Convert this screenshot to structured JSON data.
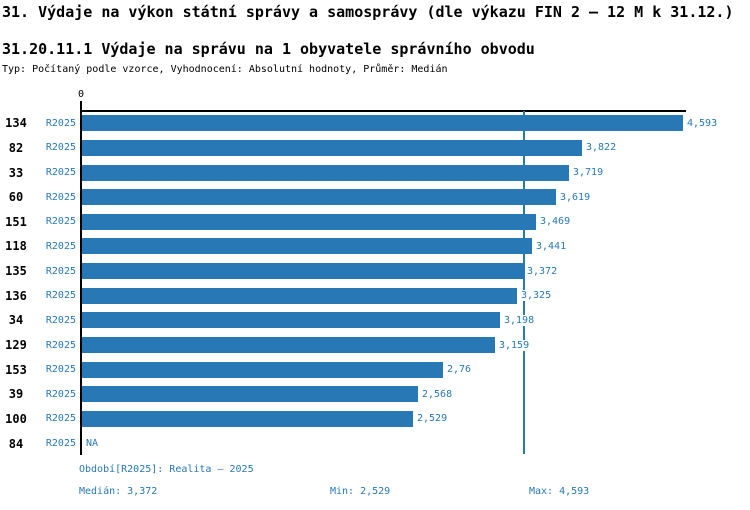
{
  "header": {
    "title": "31. Výdaje na výkon státní správy a samosprávy (dle výkazu FIN 2 – 12 M k 31.12.)",
    "subtitle": "31.20.11.1 Výdaje na správu na 1 obyvatele správního obvodu",
    "type_line": "Typ: Počítaný podle vzorce, Vyhodnocení: Absolutní hodnoty, Průměr: Medián"
  },
  "chart_data": {
    "type": "bar",
    "orientation": "horizontal",
    "x_axis": {
      "min": 0,
      "max": 4593,
      "tick_label": "0"
    },
    "colors": {
      "bar": "#2878b5",
      "accent_text": "#2878b5",
      "axis": "#000000"
    },
    "median_value": 3372,
    "min_value": 2529,
    "max_value": 4593,
    "rows": [
      {
        "id": "134",
        "period": "R2025",
        "value": 4593,
        "value_label": "4,593"
      },
      {
        "id": "82",
        "period": "R2025",
        "value": 3822,
        "value_label": "3,822"
      },
      {
        "id": "33",
        "period": "R2025",
        "value": 3719,
        "value_label": "3,719"
      },
      {
        "id": "60",
        "period": "R2025",
        "value": 3619,
        "value_label": "3,619"
      },
      {
        "id": "151",
        "period": "R2025",
        "value": 3469,
        "value_label": "3,469"
      },
      {
        "id": "118",
        "period": "R2025",
        "value": 3441,
        "value_label": "3,441"
      },
      {
        "id": "135",
        "period": "R2025",
        "value": 3372,
        "value_label": "3,372"
      },
      {
        "id": "136",
        "period": "R2025",
        "value": 3325,
        "value_label": "3,325"
      },
      {
        "id": "34",
        "period": "R2025",
        "value": 3198,
        "value_label": "3,198"
      },
      {
        "id": "129",
        "period": "R2025",
        "value": 3159,
        "value_label": "3,159"
      },
      {
        "id": "153",
        "period": "R2025",
        "value": 2760,
        "value_label": "2,76"
      },
      {
        "id": "39",
        "period": "R2025",
        "value": 2568,
        "value_label": "2,568"
      },
      {
        "id": "100",
        "period": "R2025",
        "value": 2529,
        "value_label": "2,529"
      },
      {
        "id": "84",
        "period": "R2025",
        "value": null,
        "value_label": "NA"
      }
    ]
  },
  "footer": {
    "period_label": "Období[R2025]: Realita – 2025",
    "median_label": "Medián: 3,372",
    "min_label": "Min: 2,529",
    "max_label": "Max: 4,593"
  }
}
